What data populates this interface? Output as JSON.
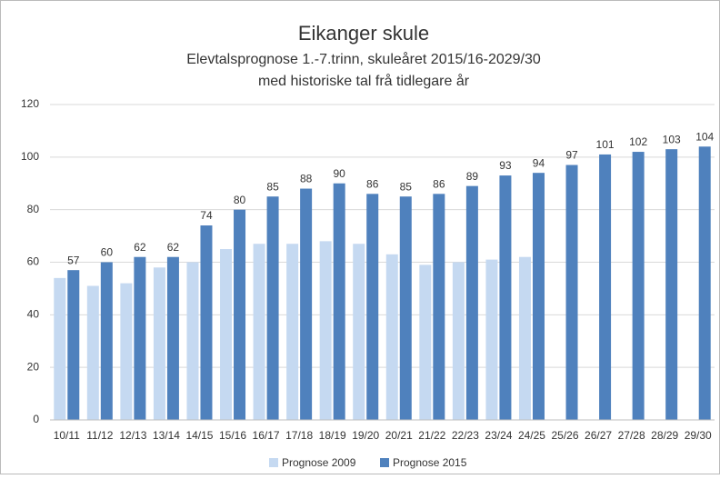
{
  "chart_data": {
    "type": "bar",
    "title": "Eikanger skule",
    "subtitle": [
      "Elevtalsprognose 1.-7.trinn, skuleåret 2015/16-2029/30",
      "med historiske tal frå tidlegare år"
    ],
    "categories": [
      "10/11",
      "11/12",
      "12/13",
      "13/14",
      "14/15",
      "15/16",
      "16/17",
      "17/18",
      "18/19",
      "19/20",
      "20/21",
      "21/22",
      "22/23",
      "23/24",
      "24/25",
      "25/26",
      "26/27",
      "27/28",
      "28/29",
      "29/30"
    ],
    "series": [
      {
        "name": "Prognose 2009",
        "color": "#c5d9f1",
        "values": [
          54,
          51,
          52,
          58,
          60,
          65,
          67,
          67,
          68,
          67,
          63,
          59,
          60,
          61,
          62,
          null,
          null,
          null,
          null,
          null
        ]
      },
      {
        "name": "Prognose 2015",
        "color": "#4f81bd",
        "values": [
          57,
          60,
          62,
          62,
          74,
          80,
          85,
          88,
          90,
          86,
          85,
          86,
          89,
          93,
          94,
          97,
          101,
          102,
          103,
          104
        ],
        "data_labels": true
      }
    ],
    "ylim": [
      0,
      120
    ],
    "yticks": [
      0,
      20,
      40,
      60,
      80,
      100,
      120
    ],
    "grid": true,
    "legend": "bottom"
  }
}
